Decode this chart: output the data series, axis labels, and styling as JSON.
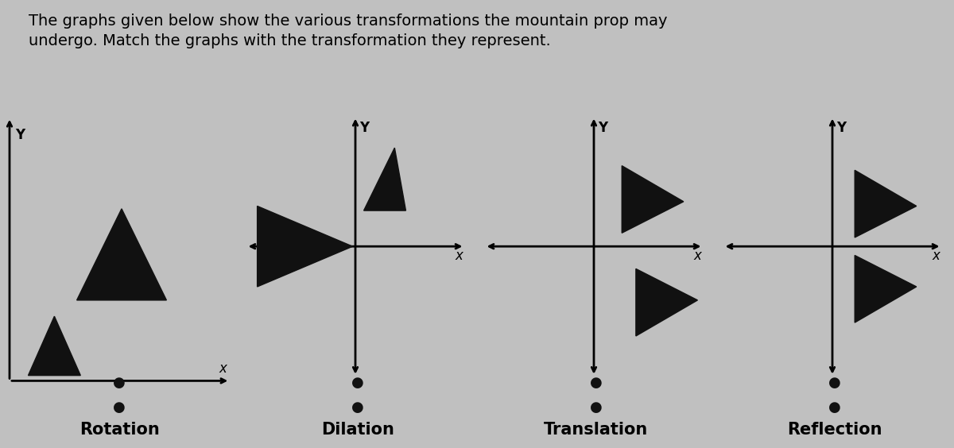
{
  "title": "The graphs given below show the various transformations the mountain prop may\nundergo. Match the graphs with the transformation they represent.",
  "labels": [
    "Rotation",
    "Dilation",
    "Translation",
    "Reflection"
  ],
  "bg_color": "#c0c0c0",
  "text_color": "#000000",
  "title_fontsize": 14,
  "label_fontsize": 15,
  "tri_color": "#111111"
}
